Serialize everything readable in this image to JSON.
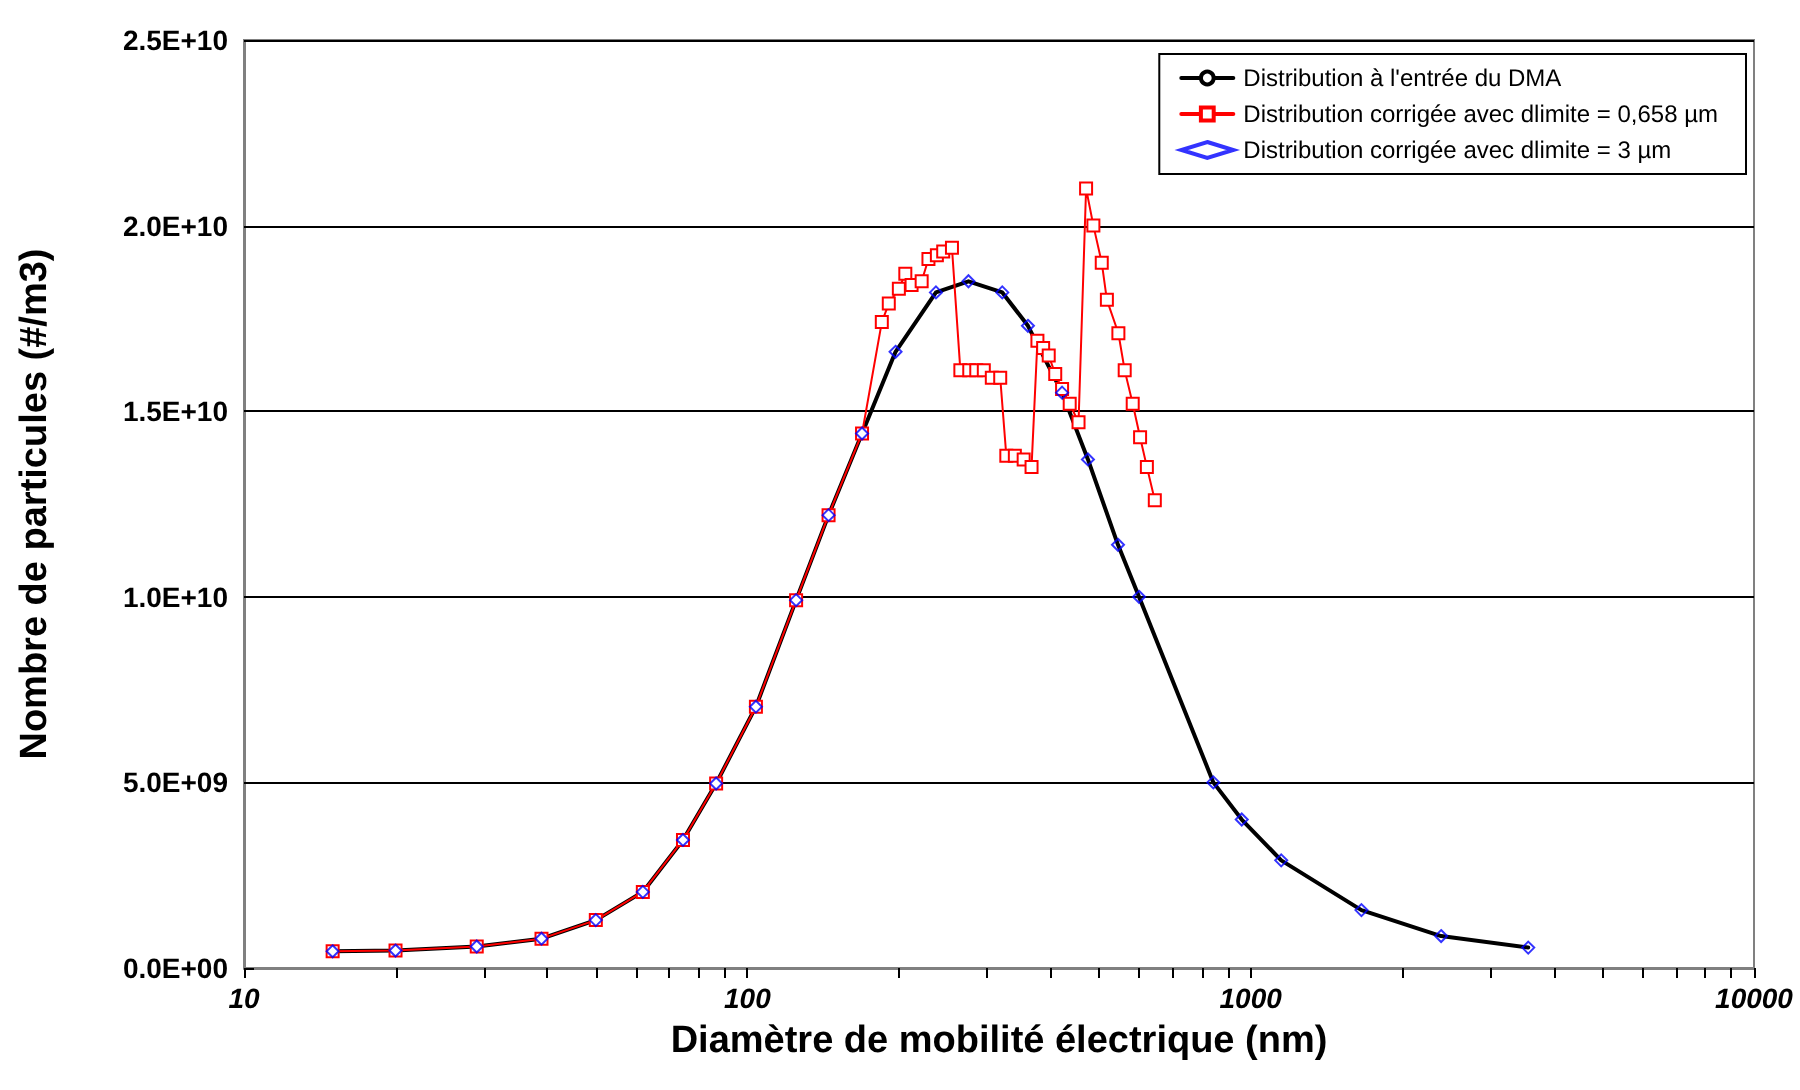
{
  "chart_data": {
    "type": "line",
    "xlabel": "Diamètre de mobilité électrique (nm)",
    "ylabel": "Nombre de particules (#/m3)",
    "log": "x",
    "grid": "y",
    "legend": "top right",
    "xlim": [
      10,
      10000
    ],
    "xticks": [
      10,
      100,
      1000,
      10000
    ],
    "ylim": [
      0,
      25000000000
    ],
    "yticks": [
      {
        "value": 0,
        "label": "0.0E+00"
      },
      {
        "value": 5000000000,
        "label": "5.0E+09"
      },
      {
        "value": 10000000000,
        "label": "1.0E+10"
      },
      {
        "value": 15000000000,
        "label": "1.5E+10"
      },
      {
        "value": 20000000000,
        "label": "2.0E+10"
      },
      {
        "value": 25000000000,
        "label": "2.5E+10"
      }
    ],
    "series": [
      {
        "name": "Distribution à l'entrée du DMA",
        "type": "line",
        "marker": "none",
        "color": "#000000",
        "x": [
          15,
          20,
          29,
          39,
          50,
          62,
          74.5,
          86.7,
          104,
          125,
          145,
          169,
          197,
          237,
          275,
          321,
          361,
          422,
          475,
          545,
          600,
          843,
          960,
          1150,
          1660,
          2390,
          3560
        ],
        "values": [
          450000000,
          470000000,
          580000000,
          790000000,
          1290000000,
          2050000000,
          3450000000,
          4970000000,
          7040000000,
          9910000000,
          12200000000,
          14400000000,
          16600000000,
          18200000000,
          18500000000,
          18200000000,
          17300000000,
          15500000000,
          13700000000,
          11400000000,
          10000000000,
          5000000000,
          4000000000,
          2900000000,
          1560000000,
          860000000,
          550000000
        ]
      },
      {
        "name": "Distribution corrigée avec dlimite = 0,658 µm",
        "type": "line",
        "marker": "square",
        "color": "#ff0000",
        "x": [
          15,
          20,
          29,
          39,
          50,
          62,
          74.5,
          86.7,
          104,
          125,
          145,
          169,
          185,
          191,
          200,
          206,
          212,
          222,
          229,
          238,
          245,
          255,
          265,
          276,
          285,
          295,
          306,
          318,
          327,
          340,
          354,
          367,
          377,
          387,
          397,
          409,
          422,
          437,
          455,
          471,
          487,
          506,
          518,
          546,
          562,
          583,
          603,
          622,
          645
        ],
        "values": [
          450000000,
          470000000,
          580000000,
          790000000,
          1290000000,
          2050000000,
          3450000000,
          4970000000,
          7040000000,
          9910000000,
          12200000000,
          14400000000,
          17400000000,
          17900000000,
          18300000000,
          18700000000,
          18400000000,
          18500000000,
          19100000000,
          19200000000,
          19300000000,
          19400000000,
          16100000000,
          16100000000,
          16100000000,
          16100000000,
          15900000000,
          15900000000,
          13800000000,
          13800000000,
          13700000000,
          13500000000,
          16900000000,
          16700000000,
          16500000000,
          16000000000,
          15600000000,
          15200000000,
          14700000000,
          21000000000,
          20000000000,
          19000000000,
          18000000000,
          17100000000,
          16100000000,
          15200000000,
          14300000000,
          13500000000,
          12600000000
        ]
      },
      {
        "name": "Distribution corrigée avec dlimite = 3 µm",
        "type": "scatter",
        "marker": "diamond",
        "color": "#0000ff",
        "x": [
          15,
          20,
          29,
          39,
          50,
          62,
          74.5,
          86.7,
          104,
          125,
          145,
          169,
          197,
          237,
          275,
          321,
          361,
          422,
          475,
          545,
          600,
          843,
          960,
          1150,
          1660,
          2390,
          3560
        ],
        "values": [
          450000000,
          470000000,
          580000000,
          790000000,
          1290000000,
          2050000000,
          3450000000,
          4970000000,
          7040000000,
          9910000000,
          12200000000,
          14400000000,
          16600000000,
          18200000000,
          18500000000,
          18200000000,
          17300000000,
          15500000000,
          13700000000,
          11400000000,
          10000000000,
          5000000000,
          4000000000,
          2900000000,
          1560000000,
          860000000,
          550000000
        ]
      }
    ]
  }
}
